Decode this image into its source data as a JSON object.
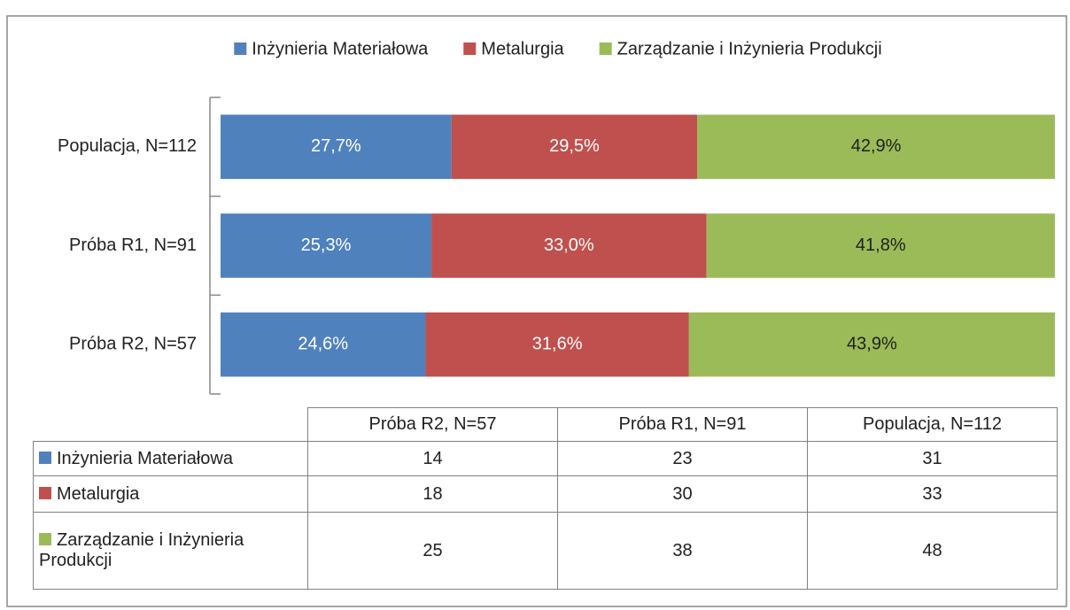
{
  "chart_data": {
    "type": "stacked_bar_horizontal",
    "categories": [
      "Populacja, N=112",
      "Próba R1, N=91",
      "Próba R2, N=57"
    ],
    "xlim": [
      0,
      100
    ],
    "legend": "top",
    "series": [
      {
        "name": "Inżynieria Materiałowa",
        "color": "#4f81bd",
        "label_color": "#ffffff",
        "values": [
          27.7,
          25.3,
          24.6
        ],
        "value_labels": [
          "27,7%",
          "25,3%",
          "24,6%"
        ],
        "counts": [
          31,
          23,
          14
        ]
      },
      {
        "name": "Metalurgia",
        "color": "#c0504d",
        "label_color": "#ffffff",
        "values": [
          29.5,
          33.0,
          31.6
        ],
        "value_labels": [
          "29,5%",
          "33,0%",
          "31,6%"
        ],
        "counts": [
          33,
          30,
          18
        ]
      },
      {
        "name": "Zarządzanie i Inżynieria Produkcji",
        "color": "#9bbb59",
        "label_color": "#1f1f1f",
        "values": [
          42.9,
          41.8,
          43.9
        ],
        "value_labels": [
          "42,9%",
          "41,8%",
          "43,9%"
        ],
        "counts": [
          48,
          38,
          25
        ]
      }
    ]
  }
}
